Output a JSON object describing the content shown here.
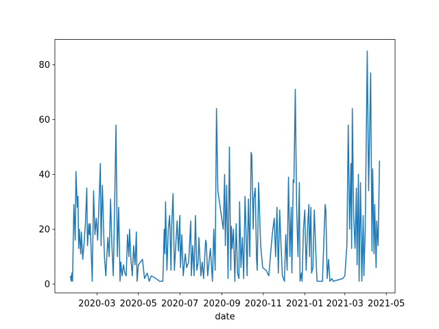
{
  "chart_data": {
    "type": "line",
    "xlabel": "date",
    "color": "#1f77b4",
    "x": [
      "2020-01-22",
      "2020-01-23",
      "2020-01-24",
      "2020-01-25",
      "2020-01-27",
      "2020-01-29",
      "2020-01-30",
      "2020-02-01",
      "2020-02-02",
      "2020-02-03",
      "2020-02-04",
      "2020-02-06",
      "2020-02-07",
      "2020-02-09",
      "2020-02-11",
      "2020-02-13",
      "2020-02-15",
      "2020-02-16",
      "2020-02-18",
      "2020-02-19",
      "2020-02-20",
      "2020-02-23",
      "2020-02-25",
      "2020-02-27",
      "2020-02-29",
      "2020-03-02",
      "2020-03-06",
      "2020-03-07",
      "2020-03-09",
      "2020-03-11",
      "2020-03-12",
      "2020-03-14",
      "2020-03-17",
      "2020-03-19",
      "2020-03-21",
      "2020-03-23",
      "2020-03-25",
      "2020-03-26",
      "2020-03-29",
      "2020-03-31",
      "2020-04-02",
      "2020-04-04",
      "2020-04-05",
      "2020-04-07",
      "2020-04-09",
      "2020-04-11",
      "2020-04-13",
      "2020-04-15",
      "2020-04-16",
      "2020-04-17",
      "2020-04-18",
      "2020-04-20",
      "2020-04-22",
      "2020-04-24",
      "2020-04-26",
      "2020-04-28",
      "2020-04-29",
      "2020-05-01",
      "2020-05-07",
      "2020-05-10",
      "2020-05-14",
      "2020-05-17",
      "2020-05-20",
      "2020-05-27",
      "2020-06-01",
      "2020-06-06",
      "2020-06-08",
      "2020-06-09",
      "2020-06-10",
      "2020-06-12",
      "2020-06-14",
      "2020-06-16",
      "2020-06-18",
      "2020-06-19",
      "2020-06-21",
      "2020-06-23",
      "2020-06-25",
      "2020-06-27",
      "2020-06-29",
      "2020-07-01",
      "2020-07-02",
      "2020-07-04",
      "2020-07-06",
      "2020-07-09",
      "2020-07-11",
      "2020-07-14",
      "2020-07-17",
      "2020-07-18",
      "2020-07-20",
      "2020-07-22",
      "2020-07-24",
      "2020-07-26",
      "2020-07-28",
      "2020-07-29",
      "2020-08-01",
      "2020-08-03",
      "2020-08-05",
      "2020-08-08",
      "2020-08-09",
      "2020-08-11",
      "2020-08-15",
      "2020-08-18",
      "2020-08-20",
      "2020-08-22",
      "2020-08-24",
      "2020-08-26",
      "2020-09-03",
      "2020-09-05",
      "2020-09-06",
      "2020-09-08",
      "2020-09-10",
      "2020-09-12",
      "2020-09-14",
      "2020-09-15",
      "2020-09-16",
      "2020-09-18",
      "2020-09-20",
      "2020-09-22",
      "2020-09-24",
      "2020-09-26",
      "2020-09-27",
      "2020-09-29",
      "2020-10-01",
      "2020-10-03",
      "2020-10-05",
      "2020-10-06",
      "2020-10-08",
      "2020-10-10",
      "2020-10-12",
      "2020-10-14",
      "2020-10-15",
      "2020-10-17",
      "2020-10-18",
      "2020-10-20",
      "2020-10-22",
      "2020-10-23",
      "2020-10-25",
      "2020-10-28",
      "2020-10-31",
      "2020-11-05",
      "2020-11-09",
      "2020-11-13",
      "2020-11-15",
      "2020-11-17",
      "2020-11-19",
      "2020-11-21",
      "2020-11-23",
      "2020-11-25",
      "2020-11-27",
      "2020-11-29",
      "2020-12-02",
      "2020-12-04",
      "2020-12-06",
      "2020-12-08",
      "2020-12-10",
      "2020-12-12",
      "2020-12-13",
      "2020-12-15",
      "2020-12-16",
      "2020-12-18",
      "2020-12-20",
      "2020-12-22",
      "2020-12-24",
      "2020-12-25",
      "2020-12-27",
      "2020-12-28",
      "2020-12-30",
      "2021-01-01",
      "2021-01-03",
      "2021-01-05",
      "2021-01-07",
      "2021-01-08",
      "2021-01-10",
      "2021-01-11",
      "2021-01-13",
      "2021-01-15",
      "2021-01-17",
      "2021-01-19",
      "2021-01-27",
      "2021-01-31",
      "2021-02-01",
      "2021-02-03",
      "2021-02-05",
      "2021-02-07",
      "2021-02-10",
      "2021-02-12",
      "2021-02-26",
      "2021-03-01",
      "2021-03-04",
      "2021-03-06",
      "2021-03-08",
      "2021-03-10",
      "2021-03-11",
      "2021-03-12",
      "2021-03-14",
      "2021-03-16",
      "2021-03-18",
      "2021-03-19",
      "2021-03-21",
      "2021-03-22",
      "2021-03-24",
      "2021-03-26",
      "2021-03-28",
      "2021-03-29",
      "2021-03-31",
      "2021-04-03",
      "2021-04-05",
      "2021-04-08",
      "2021-04-10",
      "2021-04-11",
      "2021-04-13",
      "2021-04-14",
      "2021-04-16",
      "2021-04-17",
      "2021-04-19",
      "2021-04-21"
    ],
    "values": [
      3,
      1,
      4,
      1,
      29,
      16,
      41,
      28,
      32,
      13,
      20,
      11,
      19,
      9,
      15,
      22,
      35,
      14,
      22,
      18,
      22,
      1,
      34,
      18,
      24,
      16,
      44,
      14,
      36,
      18,
      10,
      3,
      17,
      10,
      31,
      14,
      3,
      15,
      58,
      10,
      28,
      1,
      8,
      3,
      7,
      4,
      3,
      18,
      14,
      10,
      20,
      9,
      3,
      14,
      7,
      19,
      1,
      7,
      9,
      2,
      4,
      1,
      3,
      2,
      1,
      1,
      20,
      11,
      30,
      5,
      20,
      25,
      5,
      21,
      33,
      5,
      14,
      23,
      12,
      25,
      6,
      18,
      3,
      11,
      6,
      8,
      23,
      3,
      14,
      3,
      25,
      5,
      8,
      17,
      3,
      8,
      2,
      16,
      15,
      3,
      13,
      1,
      20,
      5,
      64,
      34,
      20,
      40,
      14,
      36,
      2,
      50,
      5,
      21,
      13,
      20,
      1,
      22,
      4,
      2,
      30,
      6,
      17,
      2,
      32,
      24,
      3,
      31,
      10,
      48,
      47,
      20,
      31,
      35,
      9,
      5,
      37,
      14,
      6,
      5,
      3,
      15,
      20,
      24,
      10,
      28,
      4,
      27,
      14,
      3,
      1,
      18,
      5,
      39,
      10,
      28,
      4,
      38,
      37,
      71,
      28,
      10,
      37,
      1,
      4,
      1,
      20,
      27,
      5,
      20,
      29,
      10,
      28,
      4,
      6,
      27,
      13,
      1,
      1,
      29,
      27,
      2,
      9,
      1,
      2,
      1,
      2,
      3,
      14,
      58,
      20,
      44,
      13,
      64,
      25,
      13,
      35,
      7,
      40,
      1,
      37,
      1,
      25,
      3,
      20,
      85,
      34,
      77,
      12,
      42,
      11,
      29,
      6,
      23,
      14,
      45
    ],
    "xlim": [
      "2019-12-30",
      "2021-05-14"
    ],
    "xticks": [
      {
        "value": "2020-03-01",
        "label": "2020-03"
      },
      {
        "value": "2020-05-01",
        "label": "2020-05"
      },
      {
        "value": "2020-07-01",
        "label": "2020-07"
      },
      {
        "value": "2020-09-01",
        "label": "2020-09"
      },
      {
        "value": "2020-11-01",
        "label": "2020-11"
      },
      {
        "value": "2021-01-01",
        "label": "2021-01"
      },
      {
        "value": "2021-03-01",
        "label": "2021-03"
      },
      {
        "value": "2021-05-01",
        "label": "2021-05"
      }
    ],
    "ylim": [
      -3.2,
      89.2
    ],
    "yticks": [
      0,
      20,
      40,
      60,
      80
    ]
  }
}
